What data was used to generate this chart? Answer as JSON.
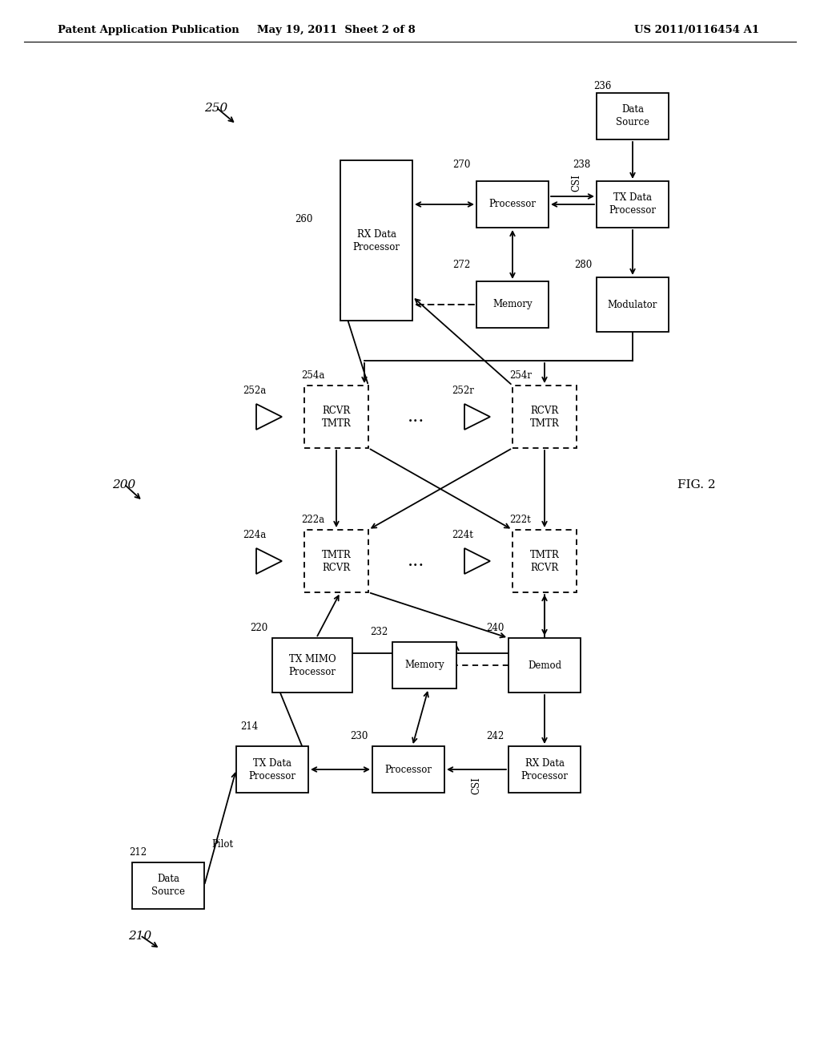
{
  "header_left": "Patent Application Publication",
  "header_mid": "May 19, 2011  Sheet 2 of 8",
  "header_right": "US 2011/0116454 A1",
  "fig_label": "FIG. 2",
  "bg_color": "#ffffff"
}
